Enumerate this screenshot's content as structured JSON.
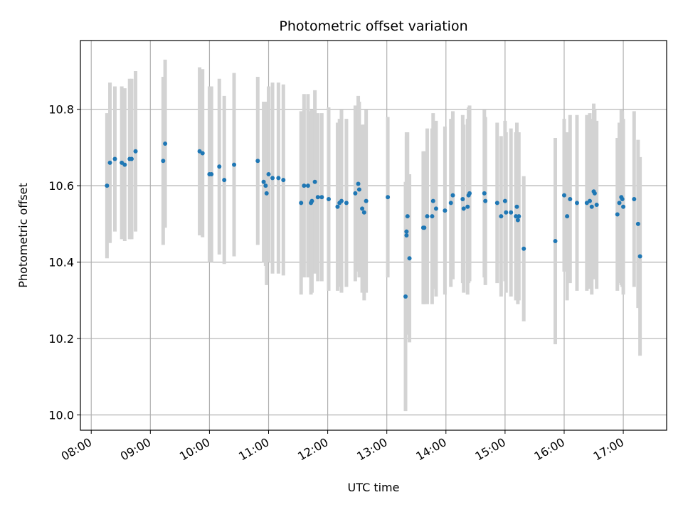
{
  "chart_data": {
    "type": "scatter",
    "title": "Photometric offset variation",
    "xlabel": "UTC time",
    "ylabel": "Photometric offset",
    "grid": true,
    "x_tick_labels": [
      "08:00",
      "09:00",
      "10:00",
      "11:00",
      "12:00",
      "13:00",
      "14:00",
      "15:00",
      "16:00",
      "17:00"
    ],
    "y_tick_labels": [
      "10.0",
      "10.2",
      "10.4",
      "10.6",
      "10.8"
    ],
    "ylim": [
      9.96,
      10.98
    ],
    "xlim": [
      "07:49",
      "17:44"
    ],
    "colors": {
      "point": "#1f77b4",
      "errorbar": "#d3d3d3",
      "grid": "#b0b0b0"
    },
    "series": [
      {
        "x": [
          "08:16",
          "08:19",
          "08:24",
          "08:31",
          "08:34",
          "08:39",
          "08:41",
          "08:45",
          "09:13",
          "09:15",
          "09:50",
          "09:53",
          "10:00",
          "10:02",
          "10:10",
          "10:15",
          "10:25",
          "10:49",
          "10:55",
          "10:57",
          "10:58",
          "11:00",
          "11:04",
          "11:10",
          "11:15",
          "11:33",
          "11:36",
          "11:40",
          "11:43",
          "11:44",
          "11:47",
          "11:50",
          "11:54",
          "12:01",
          "12:10",
          "12:12",
          "12:14",
          "12:19",
          "12:28",
          "12:31",
          "12:32",
          "12:35",
          "12:37",
          "12:39",
          "13:01",
          "13:19",
          "13:20",
          "13:20",
          "13:21",
          "13:23",
          "13:37",
          "13:38",
          "13:41",
          "13:46",
          "13:47",
          "13:50",
          "13:59",
          "14:05",
          "14:07",
          "14:17",
          "14:18",
          "14:22",
          "14:23",
          "14:24",
          "14:39",
          "14:40",
          "14:52",
          "14:56",
          "15:00",
          "15:01",
          "15:06",
          "15:11",
          "15:12",
          "15:13",
          "15:14",
          "15:19",
          "15:51",
          "16:00",
          "16:03",
          "16:06",
          "16:13",
          "16:23",
          "16:26",
          "16:28",
          "16:30",
          "16:31",
          "16:33",
          "16:54",
          "16:56",
          "16:58",
          "16:59",
          "17:00",
          "17:11",
          "17:15",
          "17:17"
        ],
        "y": [
          10.6,
          10.66,
          10.67,
          10.66,
          10.655,
          10.67,
          10.67,
          10.69,
          10.665,
          10.71,
          10.69,
          10.685,
          10.63,
          10.63,
          10.65,
          10.615,
          10.655,
          10.665,
          10.61,
          10.6,
          10.58,
          10.63,
          10.62,
          10.62,
          10.615,
          10.555,
          10.6,
          10.6,
          10.555,
          10.56,
          10.61,
          10.57,
          10.57,
          10.565,
          10.545,
          10.555,
          10.56,
          10.555,
          10.58,
          10.605,
          10.59,
          10.54,
          10.53,
          10.56,
          10.57,
          10.31,
          10.47,
          10.48,
          10.52,
          10.41,
          10.49,
          10.49,
          10.52,
          10.52,
          10.56,
          10.54,
          10.535,
          10.555,
          10.575,
          10.565,
          10.54,
          10.545,
          10.575,
          10.58,
          10.58,
          10.56,
          10.555,
          10.52,
          10.56,
          10.53,
          10.53,
          10.52,
          10.545,
          10.51,
          10.52,
          10.435,
          10.455,
          10.575,
          10.52,
          10.565,
          10.555,
          10.555,
          10.56,
          10.545,
          10.585,
          10.58,
          10.55,
          10.525,
          10.555,
          10.57,
          10.565,
          10.545,
          10.565,
          10.5,
          10.415
        ],
        "err": [
          0.19,
          0.21,
          0.19,
          0.2,
          0.2,
          0.21,
          0.21,
          0.21,
          0.22,
          0.22,
          0.22,
          0.22,
          0.23,
          0.23,
          0.23,
          0.22,
          0.24,
          0.22,
          0.21,
          0.21,
          0.24,
          0.23,
          0.25,
          0.25,
          0.25,
          0.24,
          0.24,
          0.24,
          0.24,
          0.24,
          0.24,
          0.22,
          0.22,
          0.24,
          0.22,
          0.22,
          0.24,
          0.22,
          0.23,
          0.23,
          0.23,
          0.22,
          0.23,
          0.24,
          0.21,
          0.3,
          0.26,
          0.26,
          0.22,
          0.22,
          0.2,
          0.2,
          0.23,
          0.23,
          0.23,
          0.23,
          0.22,
          0.22,
          0.22,
          0.22,
          0.22,
          0.23,
          0.23,
          0.23,
          0.22,
          0.22,
          0.21,
          0.21,
          0.21,
          0.21,
          0.22,
          0.22,
          0.22,
          0.22,
          0.22,
          0.19,
          0.27,
          0.2,
          0.22,
          0.22,
          0.23,
          0.23,
          0.23,
          0.23,
          0.23,
          0.22,
          0.22,
          0.2,
          0.21,
          0.23,
          0.23,
          0.23,
          0.23,
          0.22,
          0.26
        ]
      }
    ]
  }
}
